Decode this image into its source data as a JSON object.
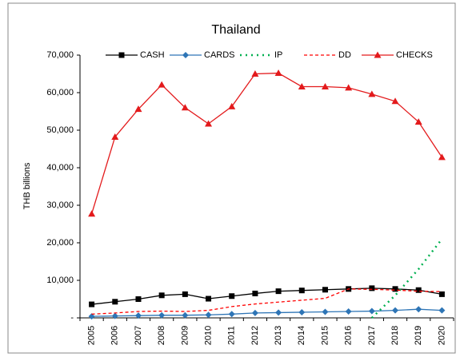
{
  "chart_data": {
    "type": "line",
    "title": "Thailand",
    "y_label": "THB billions",
    "categories": [
      "2005",
      "2006",
      "2007",
      "2008",
      "2009",
      "2010",
      "2011",
      "2012",
      "2013",
      "2014",
      "2015",
      "2016",
      "2017",
      "2018",
      "2019",
      "2020"
    ],
    "series": [
      {
        "name": "CASH",
        "color": "#000000",
        "marker": "square",
        "dash": "solid",
        "values": [
          3600,
          4300,
          5000,
          6000,
          6300,
          5100,
          5800,
          6500,
          7100,
          7300,
          7500,
          7700,
          7900,
          7700,
          7400,
          6300
        ]
      },
      {
        "name": "CARDS",
        "color": "#2e75b6",
        "marker": "diamond",
        "dash": "solid",
        "values": [
          400,
          500,
          600,
          700,
          700,
          800,
          1000,
          1300,
          1400,
          1500,
          1600,
          1700,
          1800,
          2000,
          2300,
          2000
        ]
      },
      {
        "name": "IP",
        "color": "#00b050",
        "marker": "none",
        "dash": "dotted",
        "values": [
          null,
          null,
          null,
          null,
          null,
          null,
          null,
          null,
          null,
          null,
          null,
          null,
          0,
          6000,
          13000,
          21000
        ]
      },
      {
        "name": "DD",
        "color": "#ff0000",
        "marker": "none",
        "dash": "dashed",
        "values": [
          1000,
          1300,
          1700,
          1800,
          1700,
          2000,
          3000,
          3700,
          4200,
          4700,
          5200,
          7700,
          7600,
          7400,
          7100,
          7000
        ]
      },
      {
        "name": "CHECKS",
        "color": "#e31a1c",
        "marker": "triangle",
        "dash": "solid",
        "values": [
          27700,
          48200,
          55600,
          62100,
          56000,
          51700,
          56300,
          65000,
          65200,
          61600,
          61600,
          61300,
          59600,
          57700,
          52200,
          42800
        ]
      }
    ],
    "ylim": [
      0,
      70000
    ],
    "yticks": [
      {
        "value": 0,
        "label": "-"
      },
      {
        "value": 10000,
        "label": "10,000"
      },
      {
        "value": 20000,
        "label": "20,000"
      },
      {
        "value": 30000,
        "label": "30,000"
      },
      {
        "value": 40000,
        "label": "40,000"
      },
      {
        "value": 50000,
        "label": "50,000"
      },
      {
        "value": 60000,
        "label": "60,000"
      },
      {
        "value": 70000,
        "label": "70,000"
      }
    ],
    "grid": false,
    "legend": "top"
  }
}
